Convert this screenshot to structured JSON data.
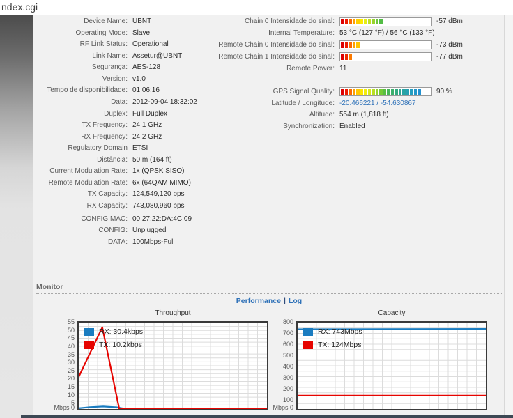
{
  "page": {
    "title": "ndex.cgi"
  },
  "colors": {
    "accent_blue": "#1a7cc0",
    "accent_red": "#e60400",
    "link_blue": "#2e71b8",
    "panel_bg": "#f1f1f1"
  },
  "info": {
    "left": [
      {
        "label": "Device Name:",
        "value": "UBNT"
      },
      {
        "label": "Operating Mode:",
        "value": "Slave"
      },
      {
        "label": "RF Link Status:",
        "value": "Operational"
      },
      {
        "label": "Link Name:",
        "value": "Assetur@UBNT"
      },
      {
        "label": "Segurança:",
        "value": "AES-128"
      },
      {
        "label": "Version:",
        "value": "v1.0"
      },
      {
        "label": "Tempo de disponibilidade:",
        "value": "01:06:16",
        "wrap": true
      },
      {
        "label": "Data:",
        "value": "2012-09-04 18:32:02"
      },
      {
        "label": "Duplex:",
        "value": "Full Duplex",
        "gap": 4
      },
      {
        "label": "TX Frequency:",
        "value": "24.1 GHz"
      },
      {
        "label": "RX Frequency:",
        "value": "24.2 GHz"
      },
      {
        "label": "Regulatory Domain",
        "value": "ETSI"
      },
      {
        "label": "Distância:",
        "value": "50 m (164 ft)"
      },
      {
        "label": "Current Modulation Rate:",
        "value": "1x (QPSK SISO)",
        "wrap": true
      },
      {
        "label": "Remote Modulation Rate:",
        "value": "6x (64QAM MIMO)",
        "wrap": true
      },
      {
        "label": "TX Capacity:",
        "value": "124,549,120 bps"
      },
      {
        "label": "RX Capacity:",
        "value": "743,080,960 bps"
      },
      {
        "label": "CONFIG MAC:",
        "value": "00:27:22:DA:4C:09",
        "gap": 6
      },
      {
        "label": "CONFIG:",
        "value": "Unplugged"
      },
      {
        "label": "DATA:",
        "value": "100Mbps-Full"
      }
    ],
    "right": [
      {
        "label": "Chain 0 Intensidade do sinal:",
        "value": "-57 dBm",
        "bar": [
          "#dd0000",
          "#ee1c00",
          "#fb6a00",
          "#ffa000",
          "#ffd000",
          "#fdea00",
          "#e4ee14",
          "#bfe222",
          "#96d42c",
          "#6cc639",
          "#52bc44"
        ]
      },
      {
        "label": "Internal Temperature:",
        "value": "53 °C (127 °F) / 56 °C (133 °F)"
      },
      {
        "label": "Remote Chain 0 Intensidade do sinal:",
        "value": "-73 dBm",
        "bar": [
          "#dd0000",
          "#ee1c00",
          "#fb6a00",
          "#ffa000",
          "#ffc400"
        ]
      },
      {
        "label": "Remote Chain 1 Intensidade do sinal:",
        "value": "-77 dBm",
        "bar": [
          "#dd0000",
          "#ee2a00",
          "#fb7a00"
        ]
      },
      {
        "label": "Remote Power:",
        "value": "11"
      },
      {
        "label": "GPS Signal Quality:",
        "value": "90 %",
        "gap": 20,
        "bar": [
          "#dd0000",
          "#ee1c00",
          "#fb6a00",
          "#ffa000",
          "#ffc800",
          "#fde400",
          "#f2ee0a",
          "#d8ea18",
          "#b8e022",
          "#96d42c",
          "#74ca36",
          "#58be42",
          "#46b757",
          "#3bb06c",
          "#34ab80",
          "#2fa792",
          "#2aa4a4",
          "#27a0b2",
          "#259fc0",
          "#2397c9",
          "#2191d1"
        ]
      },
      {
        "label": "Latitude / Longitude:",
        "value": "-20.466221 / -54.630867",
        "link": true
      },
      {
        "label": "Altitude:",
        "value": "554 m (1,818 ft)"
      },
      {
        "label": "Synchronization:",
        "value": "Enabled"
      }
    ]
  },
  "monitor": {
    "title": "Monitor",
    "performance_label": "Performance",
    "separator": "|",
    "log_label": "Log"
  },
  "chart_data": [
    {
      "type": "line",
      "title": "Throughput",
      "ylabel": "Mbps",
      "origin_label": "Mbps 0",
      "ylim": [
        0,
        55
      ],
      "y_ticks": [
        55,
        50,
        45,
        40,
        35,
        30,
        25,
        20,
        15,
        10,
        5
      ],
      "y_minor_step": 2.5,
      "x_divisions": 20,
      "grid": true,
      "legend_position": "top-left",
      "series": [
        {
          "name": "RX",
          "legend": "RX: 30.4kbps",
          "color": "#1a7cc0",
          "points": [
            [
              0,
              0.5
            ],
            [
              0.06,
              1.2
            ],
            [
              0.13,
              1.6
            ],
            [
              0.2,
              1.1
            ],
            [
              0.24,
              0.3
            ],
            [
              0.3,
              0.3
            ],
            [
              1,
              0.3
            ]
          ]
        },
        {
          "name": "TX",
          "legend": "TX: 10.2kbps",
          "color": "#e60400",
          "points": [
            [
              0,
              20.5
            ],
            [
              0.125,
              52
            ],
            [
              0.215,
              0.3
            ],
            [
              1,
              0.3
            ]
          ]
        }
      ]
    },
    {
      "type": "line",
      "title": "Capacity",
      "ylabel": "Mbps",
      "origin_label": "Mbps 0",
      "ylim": [
        0,
        800
      ],
      "y_ticks": [
        800,
        700,
        600,
        500,
        400,
        300,
        200,
        100
      ],
      "y_minor_step": 50,
      "x_divisions": 20,
      "grid": true,
      "legend_position": "top-left",
      "series": [
        {
          "name": "RX",
          "legend": "RX: 743Mbps",
          "color": "#1a7cc0",
          "points": [
            [
              0,
              738
            ],
            [
              0.5,
              740
            ],
            [
              1,
              741
            ]
          ]
        },
        {
          "name": "TX",
          "legend": "TX: 124Mbps",
          "color": "#e60400",
          "points": [
            [
              0,
              123
            ],
            [
              1,
              124
            ]
          ]
        }
      ]
    }
  ]
}
